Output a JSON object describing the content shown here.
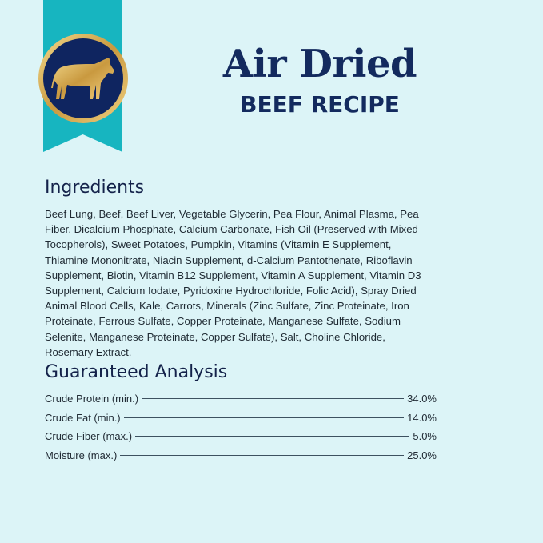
{
  "header": {
    "title": "Air Dried",
    "subtitle": "BEEF RECIPE",
    "badge_icon": "bull-icon"
  },
  "colors": {
    "background": "#dcf4f7",
    "ribbon": "#17b5c0",
    "navy": "#132a5e",
    "gold": "#d9b25a"
  },
  "ingredients": {
    "heading": "Ingredients",
    "lines": [
      "Beef Lung, Beef, Beef Liver, Vegetable Glycerin, Pea Flour, Animal Plasma, Pea",
      "Fiber, Dicalcium Phosphate, Calcium Carbonate, Fish Oil (Preserved with Mixed",
      "Tocopherols), Sweet Potatoes, Pumpkin, Vitamins (Vitamin E Supplement,",
      "Thiamine Mononitrate, Niacin Supplement, d-Calcium Pantothenate, Riboflavin",
      "Supplement, Biotin, Vitamin B12 Supplement, Vitamin A Supplement, Vitamin D3",
      "Supplement, Calcium Iodate, Pyridoxine Hydrochloride, Folic Acid), Spray Dried",
      "Animal Blood Cells, Kale, Carrots, Minerals (Zinc Sulfate, Zinc Proteinate, Iron",
      "Proteinate, Ferrous Sulfate, Copper Proteinate, Manganese Sulfate, Sodium",
      "Selenite, Manganese Proteinate, Copper Sulfate), Salt, Choline Chloride,",
      "Rosemary Extract."
    ]
  },
  "analysis": {
    "heading": "Guaranteed Analysis",
    "rows": [
      {
        "label": "Crude Protein (min.)",
        "value": "34.0%"
      },
      {
        "label": "Crude Fat (min.)",
        "value": "14.0%"
      },
      {
        "label": "Crude Fiber (max.)",
        "value": "5.0%"
      },
      {
        "label": "Moisture (max.)",
        "value": "25.0%"
      }
    ]
  }
}
